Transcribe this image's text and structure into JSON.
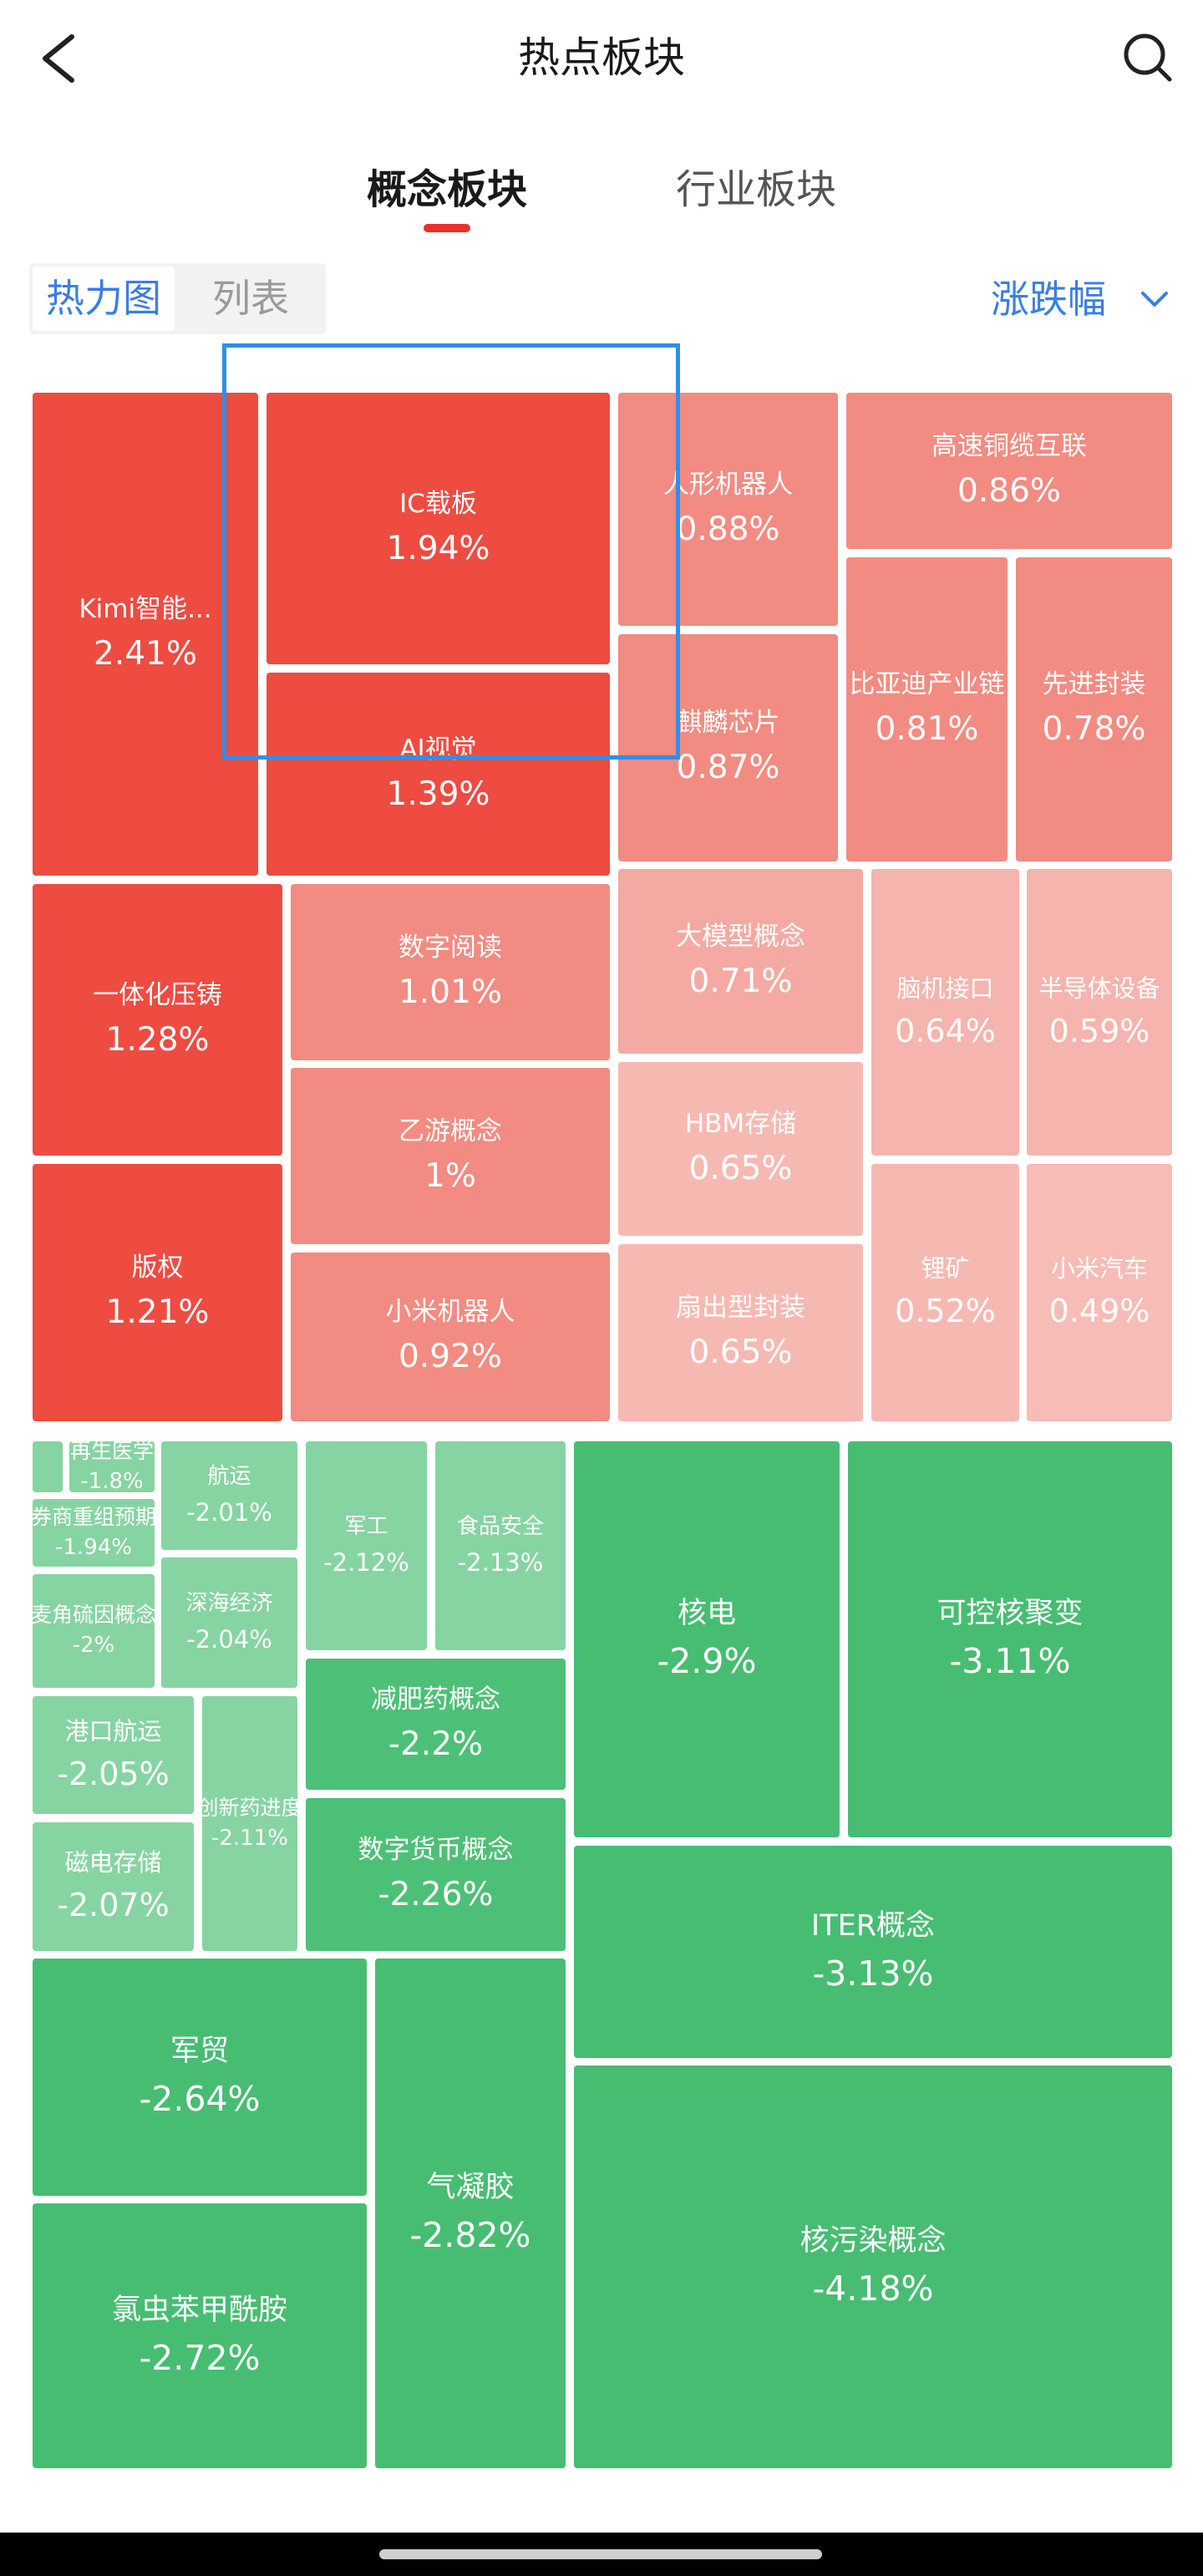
{
  "header": {
    "title": "热点板块",
    "back_icon": "chevron-left-icon",
    "search_icon": "search-icon"
  },
  "tabs": [
    {
      "label": "概念板块",
      "active": true
    },
    {
      "label": "行业板块",
      "active": false
    }
  ],
  "view_toggle": {
    "options": [
      "热力图",
      "列表"
    ],
    "selected": "热力图"
  },
  "sort": {
    "label": "涨跌幅",
    "icon": "chevron-down-icon"
  },
  "colors": {
    "accent_blue": "#3a7ee6",
    "tab_indicator": "#e8322a",
    "rise_strong": "#ee4b41",
    "rise_medium": "#f28b81",
    "rise_light": "#f5b5ad",
    "fall_light": "#86d4a2",
    "fall_strong": "#47bd72"
  },
  "heatmap": {
    "tiles": [
      {
        "name": "Kimi智能...",
        "change": "2.41%",
        "color": "#ee4b41"
      },
      {
        "name": "IC载板",
        "change": "1.94%",
        "color": "#ee4b41"
      },
      {
        "name": "AI视觉",
        "change": "1.39%",
        "color": "#ee4b41"
      },
      {
        "name": "人形机器人",
        "change": "0.88%",
        "color": "#f28b81"
      },
      {
        "name": "麒麟芯片",
        "change": "0.87%",
        "color": "#f28b81"
      },
      {
        "name": "高速铜缆互联",
        "change": "0.86%",
        "color": "#f28b81"
      },
      {
        "name": "比亚迪产业链",
        "change": "0.81%",
        "color": "#f28b81"
      },
      {
        "name": "先进封装",
        "change": "0.78%",
        "color": "#f28b81"
      },
      {
        "name": "一体化压铸",
        "change": "1.28%",
        "color": "#ee4b41"
      },
      {
        "name": "版权",
        "change": "1.21%",
        "color": "#ee4b41"
      },
      {
        "name": "数字阅读",
        "change": "1.01%",
        "color": "#f28b81"
      },
      {
        "name": "乙游概念",
        "change": "1%",
        "color": "#f28b81"
      },
      {
        "name": "小米机器人",
        "change": "0.92%",
        "color": "#f28b81"
      },
      {
        "name": "大模型概念",
        "change": "0.71%",
        "color": "#f4aaa2"
      },
      {
        "name": "HBM存储",
        "change": "0.65%",
        "color": "#f6b9b2"
      },
      {
        "name": "扇出型封装",
        "change": "0.65%",
        "color": "#f6b9b2"
      },
      {
        "name": "脑机接口",
        "change": "0.64%",
        "color": "#f5b4ad"
      },
      {
        "name": "半导体设备",
        "change": "0.59%",
        "color": "#f5b4ad"
      },
      {
        "name": "锂矿",
        "change": "0.52%",
        "color": "#f6b9b2"
      },
      {
        "name": "小米汽车",
        "change": "0.49%",
        "color": "#f6bcb5"
      },
      {
        "color": "#86d4a2"
      },
      {
        "name": "再生医学",
        "change": "-1.8%",
        "color": "#86d4a2"
      },
      {
        "name": "券商重组预期",
        "change": "-1.94%",
        "color": "#86d4a2"
      },
      {
        "name": "麦角硫因概念",
        "change": "-2%",
        "color": "#86d4a2"
      },
      {
        "name": "航运",
        "change": "-2.01%",
        "color": "#86d4a2"
      },
      {
        "name": "深海经济",
        "change": "-2.04%",
        "color": "#86d4a2"
      },
      {
        "name": "军工",
        "change": "-2.12%",
        "color": "#86d4a2"
      },
      {
        "name": "食品安全",
        "change": "-2.13%",
        "color": "#86d4a2"
      },
      {
        "name": "港口航运",
        "change": "-2.05%",
        "color": "#86d4a2"
      },
      {
        "name": "磁电存储",
        "change": "-2.07%",
        "color": "#86d4a2"
      },
      {
        "name": "创新药进度",
        "change": "-2.11%",
        "color": "#86d4a2"
      },
      {
        "name": "减肥药概念",
        "change": "-2.2%",
        "color": "#4dc077"
      },
      {
        "name": "数字货币概念",
        "change": "-2.26%",
        "color": "#4dc077"
      },
      {
        "name": "核电",
        "change": "-2.9%",
        "color": "#47bd72"
      },
      {
        "name": "可控核聚变",
        "change": "-3.11%",
        "color": "#47bd72"
      },
      {
        "name": "ITER概念",
        "change": "-3.13%",
        "color": "#47bd72"
      },
      {
        "name": "军贸",
        "change": "-2.64%",
        "color": "#47bd72"
      },
      {
        "name": "氯虫苯甲酰胺",
        "change": "-2.72%",
        "color": "#47bd72"
      },
      {
        "name": "气凝胶",
        "change": "-2.82%",
        "color": "#47bd72"
      },
      {
        "name": "核污染概念",
        "change": "-4.18%",
        "color": "#47bd72"
      }
    ]
  }
}
